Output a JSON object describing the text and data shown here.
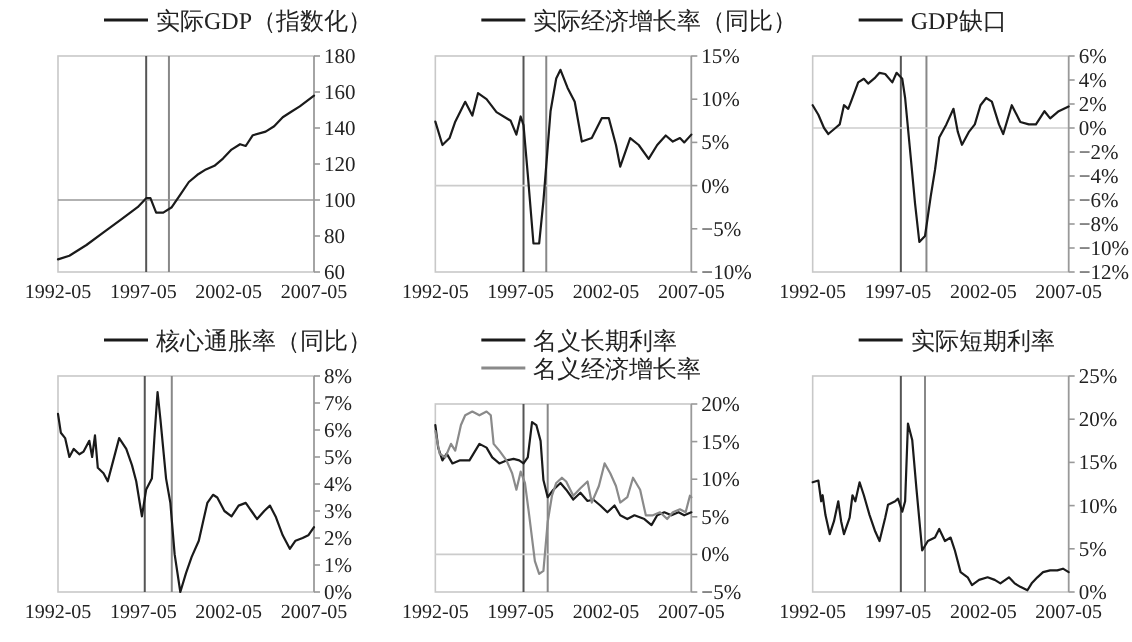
{
  "chart_data": [
    {
      "type": "line",
      "legend": "top",
      "xlim": [
        "1992-05",
        "2007-05"
      ],
      "ylim": [
        60,
        180
      ],
      "xticks": [
        "1992-05",
        "1997-05",
        "2002-05",
        "2007-05"
      ],
      "yticks": [
        60,
        80,
        100,
        120,
        140,
        160,
        180
      ],
      "ref_lines": [
        {
          "axis": "x",
          "value": "1997-07",
          "color": "#555555"
        },
        {
          "axis": "x",
          "value": "1998-11",
          "color": "#888888"
        },
        {
          "axis": "y",
          "value": 100,
          "color": "#999999"
        }
      ],
      "series": [
        {
          "name": "实际GDP（指数化）",
          "color": "#1a1a1a",
          "x": [
            "1992-05",
            "1993-01",
            "1994-01",
            "1995-01",
            "1996-01",
            "1997-01",
            "1997-07",
            "1997-10",
            "1998-02",
            "1998-07",
            "1999-01",
            "1999-07",
            "2000-01",
            "2000-07",
            "2001-01",
            "2001-07",
            "2002-01",
            "2002-07",
            "2003-01",
            "2003-05",
            "2003-10",
            "2004-07",
            "2005-01",
            "2005-07",
            "2006-01",
            "2006-07",
            "2007-05"
          ],
          "values": [
            67,
            69,
            75,
            82,
            89,
            96,
            101,
            101,
            93,
            93,
            96,
            103,
            110,
            114,
            117,
            119,
            123,
            128,
            131,
            130,
            136,
            138,
            141,
            146,
            149,
            152,
            158
          ]
        }
      ]
    },
    {
      "type": "line",
      "legend": "top",
      "xlim": [
        "1992-05",
        "2007-05"
      ],
      "ylim": [
        -10,
        15
      ],
      "xticks": [
        "1992-05",
        "1997-05",
        "2002-05",
        "2007-05"
      ],
      "yticks": [
        {
          "value": 15,
          "label": "15%"
        },
        {
          "value": 10,
          "label": "10%"
        },
        {
          "value": 5,
          "label": "5%"
        },
        {
          "value": 0,
          "label": "0%"
        },
        {
          "value": -5,
          "label": "−5%"
        },
        {
          "value": -10,
          "label": "−10%"
        }
      ],
      "ref_lines": [
        {
          "axis": "x",
          "value": "1997-07",
          "color": "#555555"
        },
        {
          "axis": "x",
          "value": "1998-11",
          "color": "#888888"
        },
        {
          "axis": "y",
          "value": 0,
          "color": "#cccccc"
        }
      ],
      "series": [
        {
          "name": "实际经济增长率（同比）",
          "color": "#1a1a1a",
          "x": [
            "1992-05",
            "1992-10",
            "1993-03",
            "1993-07",
            "1994-02",
            "1994-07",
            "1994-11",
            "1995-05",
            "1995-12",
            "1996-10",
            "1997-02",
            "1997-05",
            "1997-07",
            "1997-10",
            "1998-02",
            "1998-06",
            "1998-09",
            "1999-02",
            "1999-06",
            "1999-09",
            "2000-02",
            "2000-07",
            "2000-12",
            "2001-07",
            "2002-02",
            "2002-07",
            "2002-12",
            "2003-03",
            "2003-10",
            "2004-04",
            "2004-11",
            "2005-05",
            "2005-11",
            "2006-04",
            "2006-09",
            "2006-12",
            "2007-05"
          ],
          "values": [
            7.4,
            4.7,
            5.5,
            7.4,
            9.7,
            8.1,
            10.7,
            10,
            8.5,
            7.5,
            5.9,
            8,
            7,
            1.3,
            -6.7,
            -6.7,
            -1.8,
            8.6,
            12.4,
            13.4,
            11.3,
            9.7,
            5.1,
            5.5,
            7.8,
            7.8,
            4.7,
            2.2,
            5.5,
            4.7,
            3.1,
            4.7,
            5.8,
            5.1,
            5.5,
            5,
            5.9
          ]
        }
      ]
    },
    {
      "type": "line",
      "legend": "top",
      "xlim": [
        "1992-05",
        "2007-05"
      ],
      "ylim": [
        -12,
        6
      ],
      "xticks": [
        "1992-05",
        "1997-05",
        "2002-05",
        "2007-05"
      ],
      "yticks": [
        {
          "value": 6,
          "label": "6%"
        },
        {
          "value": 4,
          "label": "4%"
        },
        {
          "value": 2,
          "label": "2%"
        },
        {
          "value": 0,
          "label": "0%"
        },
        {
          "value": -2,
          "label": "−2%"
        },
        {
          "value": -4,
          "label": "−4%"
        },
        {
          "value": -6,
          "label": "−6%"
        },
        {
          "value": -8,
          "label": "−8%"
        },
        {
          "value": -10,
          "label": "−10%"
        },
        {
          "value": -12,
          "label": "−12%"
        }
      ],
      "ref_lines": [
        {
          "axis": "x",
          "value": "1997-07",
          "color": "#555555"
        },
        {
          "axis": "x",
          "value": "1999-01",
          "color": "#888888"
        },
        {
          "axis": "y",
          "value": 0,
          "color": "#cccccc"
        }
      ],
      "series": [
        {
          "name": "GDP缺口",
          "color": "#1a1a1a",
          "x": [
            "1992-05",
            "1992-09",
            "1993-01",
            "1993-04",
            "1993-09",
            "1993-12",
            "1994-03",
            "1994-06",
            "1994-08",
            "1995-01",
            "1995-05",
            "1995-08",
            "1996-01",
            "1996-04",
            "1996-08",
            "1997-01",
            "1997-04",
            "1997-08",
            "1997-10",
            "1998-02",
            "1998-05",
            "1998-08",
            "1998-12",
            "1999-04",
            "1999-07",
            "1999-10",
            "2000-03",
            "2000-08",
            "2000-11",
            "2001-02",
            "2001-07",
            "2001-11",
            "2002-03",
            "2002-07",
            "2002-11",
            "2003-04",
            "2003-07",
            "2004-01",
            "2004-07",
            "2005-01",
            "2005-06",
            "2005-12",
            "2006-04",
            "2006-10",
            "2007-05"
          ],
          "values": [
            1.9,
            1.1,
            0,
            -0.5,
            0,
            0.3,
            1.9,
            1.6,
            2.2,
            3.8,
            4.1,
            3.7,
            4.2,
            4.6,
            4.5,
            3.8,
            4.6,
            4.1,
            2.5,
            -2.5,
            -6.3,
            -9.5,
            -9,
            -5.7,
            -3.5,
            -0.8,
            0.3,
            1.6,
            -0.3,
            -1.4,
            -0.3,
            0.3,
            1.9,
            2.5,
            2.2,
            0.3,
            -0.5,
            1.9,
            0.5,
            0.3,
            0.3,
            1.4,
            0.8,
            1.4,
            1.8
          ]
        }
      ]
    },
    {
      "type": "line",
      "legend": "top",
      "xlim": [
        "1992-05",
        "2007-05"
      ],
      "ylim": [
        0,
        8
      ],
      "xticks": [
        "1992-05",
        "1997-05",
        "2002-05",
        "2007-05"
      ],
      "yticks": [
        {
          "value": 8,
          "label": "8%"
        },
        {
          "value": 7,
          "label": "7%"
        },
        {
          "value": 6,
          "label": "6%"
        },
        {
          "value": 5,
          "label": "5%"
        },
        {
          "value": 4,
          "label": "4%"
        },
        {
          "value": 3,
          "label": "3%"
        },
        {
          "value": 2,
          "label": "2%"
        },
        {
          "value": 1,
          "label": "1%"
        },
        {
          "value": 0,
          "label": "0%"
        }
      ],
      "ref_lines": [
        {
          "axis": "x",
          "value": "1997-06",
          "color": "#555555"
        },
        {
          "axis": "x",
          "value": "1999-01",
          "color": "#888888"
        }
      ],
      "series": [
        {
          "name": "核心通胀率（同比）",
          "color": "#1a1a1a",
          "x": [
            "1992-05",
            "1992-07",
            "1992-10",
            "1993-01",
            "1993-04",
            "1993-08",
            "1993-11",
            "1994-03",
            "1994-05",
            "1994-07",
            "1994-09",
            "1995-01",
            "1995-04",
            "1995-07",
            "1995-12",
            "1996-05",
            "1996-09",
            "1996-12",
            "1997-04",
            "1997-07",
            "1997-11",
            "1998-01",
            "1998-03",
            "1998-05",
            "1998-09",
            "1998-12",
            "1999-03",
            "1999-07",
            "1999-11",
            "2000-03",
            "2000-08",
            "2000-11",
            "2001-02",
            "2001-06",
            "2001-09",
            "2002-02",
            "2002-07",
            "2002-12",
            "2003-05",
            "2003-09",
            "2004-01",
            "2004-06",
            "2004-10",
            "2005-02",
            "2005-07",
            "2005-12",
            "2006-04",
            "2006-09",
            "2007-01",
            "2007-05"
          ],
          "values": [
            6.6,
            5.9,
            5.7,
            5.0,
            5.3,
            5.1,
            5.2,
            5.6,
            5.0,
            5.8,
            4.6,
            4.4,
            4.1,
            4.7,
            5.7,
            5.3,
            4.7,
            4.1,
            2.8,
            3.8,
            4.2,
            5.9,
            7.4,
            6.4,
            4.2,
            3.3,
            1.4,
            0,
            0.7,
            1.3,
            1.9,
            2.6,
            3.3,
            3.6,
            3.5,
            3.0,
            2.8,
            3.2,
            3.3,
            3.0,
            2.7,
            3.0,
            3.2,
            2.8,
            2.1,
            1.6,
            1.9,
            2.0,
            2.1,
            2.4
          ]
        }
      ]
    },
    {
      "type": "line",
      "legend": "top",
      "xlim": [
        "1992-05",
        "2007-05"
      ],
      "ylim": [
        -5,
        20
      ],
      "xticks": [
        "1992-05",
        "1997-05",
        "2002-05",
        "2007-05"
      ],
      "yticks": [
        {
          "value": 20,
          "label": "20%"
        },
        {
          "value": 15,
          "label": "15%"
        },
        {
          "value": 10,
          "label": "10%"
        },
        {
          "value": 5,
          "label": "5%"
        },
        {
          "value": 0,
          "label": "0%"
        },
        {
          "value": -5,
          "label": "−5%"
        }
      ],
      "ref_lines": [
        {
          "axis": "x",
          "value": "1997-07",
          "color": "#555555"
        },
        {
          "axis": "x",
          "value": "1998-12",
          "color": "#888888"
        },
        {
          "axis": "y",
          "value": 0,
          "color": "#cccccc"
        }
      ],
      "series": [
        {
          "name": "名义长期利率",
          "color": "#1a1a1a",
          "x": [
            "1992-05",
            "1992-07",
            "1992-10",
            "1993-01",
            "1993-05",
            "1993-10",
            "1994-05",
            "1994-12",
            "1995-05",
            "1995-09",
            "1996-02",
            "1996-07",
            "1996-12",
            "1997-04",
            "1997-07",
            "1997-10",
            "1998-01",
            "1998-04",
            "1998-07",
            "1998-09",
            "1998-12",
            "1999-04",
            "1999-09",
            "2000-01",
            "2000-06",
            "2000-11",
            "2001-04",
            "2001-08",
            "2002-01",
            "2002-06",
            "2002-11",
            "2003-03",
            "2003-08",
            "2004-01",
            "2004-08",
            "2005-01",
            "2005-05",
            "2005-10",
            "2006-03",
            "2006-08",
            "2006-12",
            "2007-05"
          ],
          "values": [
            17.2,
            14.2,
            12.5,
            13.4,
            12.1,
            12.5,
            12.5,
            14.7,
            14.2,
            12.9,
            12.1,
            12.5,
            12.7,
            12.5,
            12.1,
            12.9,
            17.6,
            17.2,
            15.1,
            9.9,
            7.6,
            8.6,
            9.5,
            8.6,
            7.3,
            8.2,
            7.1,
            7.3,
            6.5,
            5.6,
            6.5,
            5.2,
            4.7,
            5.2,
            4.7,
            3.9,
            5.2,
            5.6,
            5.2,
            5.6,
            5.2,
            5.6
          ]
        },
        {
          "name": "名义经济增长率",
          "color": "#8a8a8a",
          "x": [
            "1992-05",
            "1992-08",
            "1992-12",
            "1993-04",
            "1993-07",
            "1993-11",
            "1994-02",
            "1994-07",
            "1994-12",
            "1995-05",
            "1995-08",
            "1995-10",
            "1996-02",
            "1996-07",
            "1996-11",
            "1997-02",
            "1997-05",
            "1997-08",
            "1997-11",
            "1998-03",
            "1998-06",
            "1998-09",
            "1998-12",
            "1999-03",
            "1999-06",
            "1999-10",
            "2000-01",
            "2000-06",
            "2000-11",
            "2001-04",
            "2001-07",
            "2001-12",
            "2002-04",
            "2002-08",
            "2002-12",
            "2003-03",
            "2003-08",
            "2003-12",
            "2004-05",
            "2004-09",
            "2005-02",
            "2005-07",
            "2005-12",
            "2006-04",
            "2006-09",
            "2007-01",
            "2007-04",
            "2007-05"
          ],
          "values": [
            16.4,
            13.4,
            12.9,
            14.7,
            13.8,
            17.2,
            18.5,
            19.0,
            18.5,
            19.0,
            18.5,
            14.7,
            13.8,
            12.5,
            10.8,
            8.6,
            11.0,
            9.5,
            5.2,
            -0.9,
            -2.6,
            -2.2,
            4.3,
            7.8,
            9.5,
            10.2,
            9.7,
            7.8,
            8.8,
            9.7,
            6.9,
            9.1,
            12.1,
            10.8,
            9.1,
            6.9,
            7.6,
            10.2,
            8.6,
            5.2,
            5.2,
            5.6,
            4.7,
            5.6,
            6.0,
            5.6,
            7.8,
            7.6
          ]
        }
      ]
    },
    {
      "type": "line",
      "legend": "top",
      "xlim": [
        "1992-05",
        "2007-05"
      ],
      "ylim": [
        0,
        25
      ],
      "xticks": [
        "1992-05",
        "1997-05",
        "2002-05",
        "2007-05"
      ],
      "yticks": [
        {
          "value": 25,
          "label": "25%"
        },
        {
          "value": 20,
          "label": "20%"
        },
        {
          "value": 15,
          "label": "15%"
        },
        {
          "value": 10,
          "label": "10%"
        },
        {
          "value": 5,
          "label": "5%"
        },
        {
          "value": 0,
          "label": "0%"
        }
      ],
      "ref_lines": [
        {
          "axis": "x",
          "value": "1997-07",
          "color": "#555555"
        },
        {
          "axis": "x",
          "value": "1998-12",
          "color": "#888888"
        }
      ],
      "series": [
        {
          "name": "实际短期利率",
          "color": "#1a1a1a",
          "x": [
            "1992-05",
            "1992-09",
            "1992-11",
            "1992-12",
            "1993-02",
            "1993-05",
            "1993-08",
            "1993-11",
            "1994-01",
            "1994-03",
            "1994-07",
            "1994-09",
            "1994-11",
            "1995-02",
            "1995-05",
            "1995-09",
            "1996-01",
            "1996-04",
            "1996-08",
            "1996-10",
            "1997-03",
            "1997-05",
            "1997-08",
            "1997-10",
            "1997-12",
            "1998-03",
            "1998-06",
            "1998-10",
            "1999-02",
            "1999-07",
            "1999-10",
            "2000-02",
            "2000-06",
            "2000-09",
            "2001-01",
            "2001-06",
            "2001-09",
            "2002-02",
            "2002-08",
            "2003-01",
            "2003-05",
            "2003-11",
            "2004-03",
            "2004-07",
            "2004-12",
            "2005-03",
            "2005-07",
            "2005-11",
            "2006-04",
            "2006-09",
            "2007-01",
            "2007-05"
          ],
          "values": [
            12.7,
            12.9,
            10.5,
            11.2,
            8.9,
            6.7,
            8.2,
            10.5,
            8.2,
            6.7,
            8.6,
            11.2,
            10.5,
            12.7,
            11.2,
            8.9,
            7.0,
            5.9,
            8.6,
            10.1,
            10.5,
            10.8,
            9.3,
            10.5,
            19.5,
            17.6,
            11.9,
            4.8,
            5.9,
            6.3,
            7.3,
            5.9,
            6.3,
            4.8,
            2.3,
            1.7,
            0.8,
            1.4,
            1.7,
            1.4,
            1.0,
            1.7,
            1.0,
            0.6,
            0.2,
            1.0,
            1.7,
            2.3,
            2.5,
            2.5,
            2.7,
            2.3
          ]
        }
      ]
    }
  ]
}
